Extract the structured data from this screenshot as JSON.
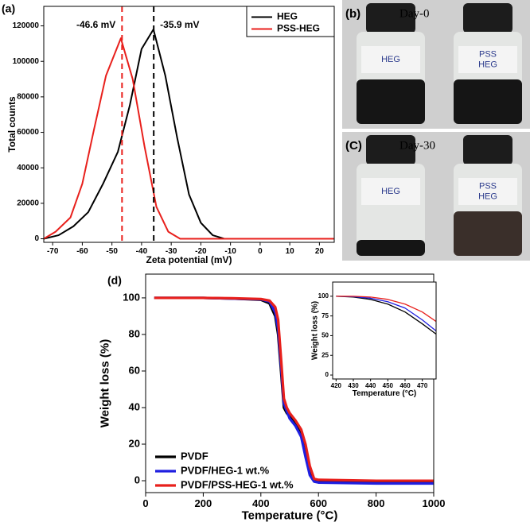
{
  "chart_data": [
    {
      "type": "line",
      "panel": "(a)",
      "xlabel": "Zeta potential  (mV)",
      "ylabel": "Total counts",
      "xlim": [
        -73,
        25
      ],
      "ylim": [
        -2000,
        131000
      ],
      "xticks": [
        -70,
        -60,
        -50,
        -40,
        -30,
        -20,
        -10,
        0,
        10,
        20
      ],
      "yticks": [
        0,
        20000,
        40000,
        60000,
        80000,
        100000,
        120000
      ],
      "legend": "upper right",
      "series": [
        {
          "name": "HEG",
          "color": "#000000",
          "x": [
            -73,
            -68,
            -63,
            -58,
            -53,
            -48,
            -44,
            -40,
            -36,
            -32,
            -28,
            -24,
            -20,
            -16,
            -12,
            25
          ],
          "values": [
            0,
            2000,
            7000,
            15000,
            31000,
            49000,
            75000,
            107000,
            118000,
            92000,
            57000,
            25000,
            9000,
            2000,
            0,
            0
          ]
        },
        {
          "name": "PSS-HEG",
          "color": "#e8201c",
          "x": [
            -73,
            -69,
            -64,
            -60,
            -56,
            -52,
            -47,
            -43,
            -39,
            -35,
            -31,
            -27,
            25
          ],
          "values": [
            0,
            4000,
            12000,
            31000,
            62000,
            92000,
            113000,
            90000,
            52000,
            18000,
            4000,
            0,
            0
          ]
        }
      ],
      "vlines": [
        {
          "x": -46.6,
          "label": "-46.6 mV",
          "color": "#e8201c"
        },
        {
          "x": -35.9,
          "label": "-35.9 mV",
          "color": "#000000"
        }
      ]
    },
    {
      "type": "line",
      "panel": "(d)",
      "xlabel": "Temperature (°C)",
      "ylabel": "Weight loss (%)",
      "xlim": [
        0,
        1000
      ],
      "ylim": [
        -6.5,
        113
      ],
      "xticks": [
        0,
        200,
        400,
        600,
        800,
        1000
      ],
      "yticks": [
        0,
        20,
        40,
        60,
        80,
        100
      ],
      "legend": "lower left",
      "x": [
        30,
        100,
        200,
        300,
        400,
        430,
        450,
        460,
        470,
        480,
        490,
        500,
        520,
        540,
        555,
        570,
        585,
        600,
        800,
        1000
      ],
      "series": [
        {
          "name": "PVDF",
          "color": "#000000",
          "values": [
            100,
            100,
            100,
            99.6,
            99,
            97,
            90,
            80,
            60,
            40,
            37,
            35,
            31,
            25,
            15,
            4,
            0,
            -0.5,
            -1,
            -1
          ]
        },
        {
          "name": "PVDF/HEG-1 wt.%",
          "color": "#1f1fe0",
          "values": [
            100,
            100,
            100,
            99.6,
            99.2,
            98,
            92,
            83,
            63,
            42,
            38,
            34,
            30,
            24,
            13,
            3,
            -0.5,
            -1,
            -1.5,
            -1.5
          ]
        },
        {
          "name": "PVDF/PSS-HEG-1 wt.%",
          "color": "#e8201c",
          "values": [
            100,
            100,
            100,
            99.8,
            99.4,
            98.5,
            95,
            88,
            67,
            45,
            40,
            37,
            33,
            28,
            20,
            8,
            1,
            0.5,
            0,
            0
          ]
        }
      ]
    },
    {
      "type": "line",
      "xlabel": "Temperature (°C)",
      "ylabel": "Weight loss (%)",
      "xlim": [
        418,
        478
      ],
      "ylim": [
        -5,
        118
      ],
      "xticks": [
        420,
        430,
        440,
        450,
        460,
        470
      ],
      "yticks": [
        0,
        25,
        50,
        75,
        100
      ],
      "x": [
        420,
        430,
        440,
        450,
        460,
        470,
        478
      ],
      "series": [
        {
          "name": "PVDF",
          "color": "#000000",
          "values": [
            100,
            99,
            96,
            90,
            80,
            65,
            52
          ]
        },
        {
          "name": "PVDF/HEG-1 wt.%",
          "color": "#1f1fe0",
          "values": [
            100,
            99.5,
            97.5,
            93,
            85,
            70,
            56
          ]
        },
        {
          "name": "PVDF/PSS-HEG-1 wt.%",
          "color": "#e8201c",
          "values": [
            100,
            100,
            99,
            96,
            90,
            80,
            68
          ]
        }
      ]
    }
  ],
  "photos": [
    {
      "label": "(b)",
      "caption": "Day-0",
      "bottles": [
        [
          "HEG"
        ],
        [
          "PSS",
          "HEG"
        ]
      ]
    },
    {
      "label": "(C)",
      "caption": "Day-30",
      "bottles": [
        [
          "HEG"
        ],
        [
          "PSS",
          "HEG"
        ]
      ]
    }
  ]
}
